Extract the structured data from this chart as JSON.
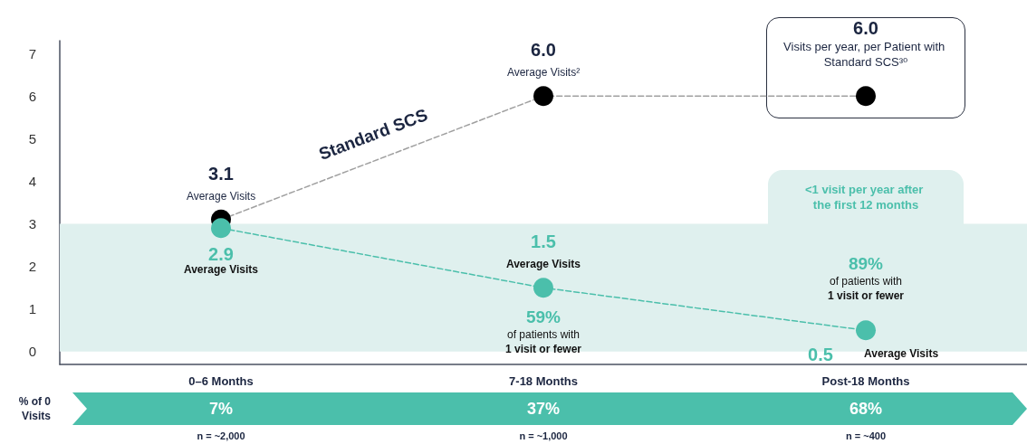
{
  "chart_data": {
    "type": "line",
    "categories": [
      "0–6 Months",
      "7-18 Months",
      "Post-18 Months"
    ],
    "series": [
      {
        "name": "Standard SCS",
        "color": "#000000",
        "values": [
          3.1,
          6.0,
          6.0
        ],
        "value_labels": [
          "3.1",
          "6.0",
          "6.0"
        ]
      },
      {
        "color": "#4bbfab",
        "values": [
          2.9,
          1.5,
          0.5
        ],
        "value_labels": [
          "2.9",
          "1.5",
          "0.5"
        ]
      }
    ],
    "ylim": [
      -0.3,
      7.3
    ],
    "yticks": [
      0,
      1,
      2,
      3,
      4,
      5,
      6,
      7
    ],
    "marker": "circle",
    "line_style": "dashed",
    "bands": [
      {
        "axis": "y",
        "from": 0,
        "to": 3,
        "color": "#dff0ee"
      }
    ],
    "annotations": [
      "Average Visits",
      "Average Visits²",
      "Visits per year, per Patient with Standard SCS³⁰",
      "Average Visits",
      "Average Visits",
      "59%",
      "of patients with",
      "1 visit or fewer",
      "89%",
      "of patients with",
      "1 visit or fewer",
      "Average Visits",
      "<1 visit per year after the first 12 months",
      "% of 0 Visits",
      "7%",
      "37%",
      "68%",
      "n = ~2,000",
      "n = ~1,000",
      "n = ~400"
    ]
  }
}
